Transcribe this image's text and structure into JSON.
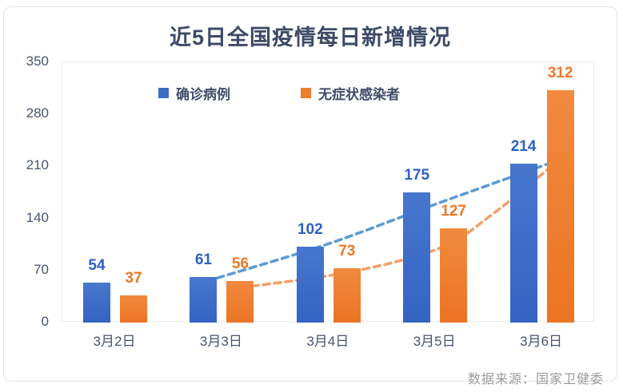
{
  "title": "近5日全国疫情每日新增情况",
  "footer": {
    "source": "数据来源：国家卫健委"
  },
  "palette": {
    "title_color": "#3d4a66",
    "axis_label_color": "#47556f",
    "source_color": "#9b9b9b",
    "plot_border_color": "#ebebeb"
  },
  "chart_data": {
    "type": "bar",
    "title": "近5日全国疫情每日新增情况",
    "xlabel": "",
    "ylabel": "",
    "categories": [
      "3月2日",
      "3月3日",
      "3月4日",
      "3月5日",
      "3月6日"
    ],
    "series": [
      {
        "name": "确诊病例",
        "values": [
          54,
          61,
          102,
          175,
          214
        ],
        "color": "#3c6cc6",
        "label_color": "#2f5fc5"
      },
      {
        "name": "无症状感染者",
        "values": [
          37,
          56,
          73,
          127,
          312
        ],
        "color": "#ee7d2e",
        "label_color": "#f07826"
      }
    ],
    "y_ticks": [
      0,
      70,
      140,
      210,
      280,
      350
    ],
    "ylim": [
      0,
      350
    ],
    "grid": false,
    "legend_position": "top-inside",
    "data_labels": true,
    "trendlines": [
      {
        "series": "确诊病例",
        "style": "dashed",
        "color": "#5b9bd5",
        "points_index_value": [
          [
            0.96,
            60
          ],
          [
            2.0,
            106
          ],
          [
            3.0,
            159
          ],
          [
            4.05,
            213
          ]
        ]
      },
      {
        "series": "无症状感染者",
        "style": "dashed",
        "color": "#f2a06b",
        "points_index_value": [
          [
            1.18,
            47
          ],
          [
            2.2,
            68
          ],
          [
            3.04,
            100
          ],
          [
            3.54,
            146
          ],
          [
            4.17,
            220
          ]
        ]
      }
    ]
  }
}
